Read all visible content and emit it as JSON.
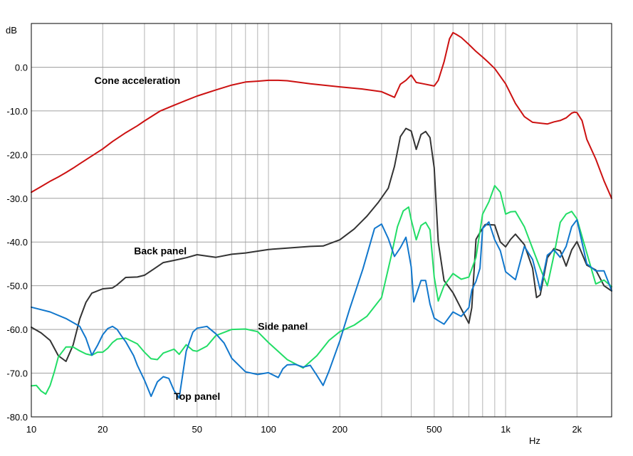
{
  "chart_data": {
    "type": "line",
    "title": "",
    "xlabel": "Hz",
    "ylabel": "dB",
    "x_scale": "log",
    "xlim": [
      10,
      2800
    ],
    "ylim": [
      -80,
      10
    ],
    "grid": true,
    "x_ticks": [
      {
        "value": 10,
        "label": "10"
      },
      {
        "value": 20,
        "label": "20"
      },
      {
        "value": 50,
        "label": "50"
      },
      {
        "value": 100,
        "label": "100"
      },
      {
        "value": 200,
        "label": "200"
      },
      {
        "value": 500,
        "label": "500"
      },
      {
        "value": 1000,
        "label": "1k"
      },
      {
        "value": 2000,
        "label": "2k"
      }
    ],
    "y_ticks": [
      {
        "value": 0,
        "label": "0.0"
      },
      {
        "value": -10,
        "label": "-10.0"
      },
      {
        "value": -20,
        "label": "-20.0"
      },
      {
        "value": -30,
        "label": "-30.0"
      },
      {
        "value": -40,
        "label": "-40.0"
      },
      {
        "value": -50,
        "label": "-50.0"
      },
      {
        "value": -60,
        "label": "-60.0"
      },
      {
        "value": -70,
        "label": "-70.0"
      },
      {
        "value": -80,
        "label": "-80.0"
      }
    ],
    "annotations": [
      {
        "text": "Cone acceleration",
        "x": 28,
        "y": -3.8
      },
      {
        "text": "Back panel",
        "x": 35,
        "y": -42.8
      },
      {
        "text": "Side panel",
        "x": 115,
        "y": -60.1
      },
      {
        "text": "Top panel",
        "x": 50,
        "y": -76.1
      }
    ],
    "series": [
      {
        "color": "#cc1111",
        "x": [
          10,
          11,
          12,
          13,
          14,
          15,
          16,
          18,
          20,
          22,
          25,
          28,
          30,
          35,
          40,
          45,
          50,
          60,
          70,
          80,
          90,
          100,
          110,
          120,
          150,
          200,
          250,
          300,
          340,
          360,
          380,
          400,
          420,
          450,
          500,
          520,
          550,
          580,
          600,
          620,
          650,
          700,
          750,
          800,
          850,
          900,
          1000,
          1100,
          1200,
          1300,
          1500,
          1600,
          1700,
          1800,
          1900,
          1950,
          2000,
          2100,
          2200,
          2400,
          2600,
          2800
        ],
        "values": [
          -28.6,
          -27.3,
          -26.1,
          -25.1,
          -24.1,
          -23.1,
          -22.1,
          -20.3,
          -18.7,
          -17.0,
          -15.0,
          -13.4,
          -12.3,
          -10.0,
          -8.7,
          -7.6,
          -6.6,
          -5.2,
          -4.1,
          -3.4,
          -3.2,
          -3.0,
          -3.0,
          -3.1,
          -3.8,
          -4.5,
          -5.0,
          -5.6,
          -6.9,
          -3.9,
          -3.0,
          -1.8,
          -3.5,
          -3.8,
          -4.3,
          -3.0,
          1.2,
          6.5,
          7.9,
          7.5,
          6.8,
          5.2,
          3.6,
          2.3,
          1.0,
          -0.3,
          -3.8,
          -8.3,
          -11.3,
          -12.6,
          -13.0,
          -12.5,
          -12.2,
          -11.6,
          -10.5,
          -10.3,
          -10.4,
          -12.2,
          -16.5,
          -21.0,
          -26.0,
          -30.0
        ]
      },
      {
        "color": "#333333",
        "x": [
          10,
          11,
          12,
          13,
          14,
          15,
          16,
          17,
          18,
          20,
          22,
          23,
          25,
          28,
          30,
          33,
          36,
          40,
          45,
          50,
          60,
          70,
          80,
          100,
          120,
          150,
          170,
          200,
          230,
          260,
          290,
          320,
          340,
          360,
          380,
          400,
          420,
          440,
          460,
          480,
          500,
          520,
          550,
          600,
          650,
          700,
          720,
          750,
          780,
          820,
          900,
          950,
          1000,
          1050,
          1100,
          1200,
          1300,
          1350,
          1400,
          1500,
          1600,
          1700,
          1800,
          1900,
          2000,
          2200,
          2400,
          2600,
          2800
        ],
        "values": [
          -59.5,
          -60.8,
          -62.5,
          -66.0,
          -67.3,
          -63.6,
          -57.6,
          -53.8,
          -51.7,
          -50.7,
          -50.5,
          -49.8,
          -48.1,
          -48.0,
          -47.6,
          -46.1,
          -44.7,
          -44.2,
          -43.6,
          -42.9,
          -43.5,
          -42.8,
          -42.5,
          -41.7,
          -41.4,
          -41.0,
          -40.9,
          -39.5,
          -37.0,
          -34.1,
          -31.0,
          -27.7,
          -22.7,
          -15.9,
          -14.0,
          -14.6,
          -18.8,
          -15.4,
          -14.7,
          -16.1,
          -23.0,
          -40.0,
          -48.8,
          -51.6,
          -55.3,
          -58.6,
          -55.0,
          -39.4,
          -37.8,
          -36.0,
          -36.1,
          -40.0,
          -41.1,
          -39.4,
          -38.2,
          -40.6,
          -46.0,
          -52.7,
          -52.1,
          -43.6,
          -41.5,
          -42.0,
          -45.5,
          -41.8,
          -39.9,
          -45.3,
          -46.4,
          -50.0,
          -51.2
        ]
      },
      {
        "color": "#22dd66",
        "x": [
          10,
          10.5,
          11,
          11.5,
          12,
          12.5,
          13,
          14,
          15,
          16,
          17,
          18,
          19,
          20,
          21,
          22,
          23,
          25,
          28,
          30,
          32,
          34,
          36,
          40,
          42,
          45,
          48,
          50,
          55,
          60,
          70,
          80,
          90,
          100,
          120,
          140,
          160,
          180,
          200,
          230,
          260,
          300,
          330,
          350,
          370,
          390,
          400,
          420,
          440,
          460,
          480,
          500,
          520,
          550,
          600,
          650,
          700,
          750,
          800,
          850,
          900,
          950,
          1000,
          1050,
          1100,
          1200,
          1300,
          1400,
          1500,
          1600,
          1700,
          1800,
          1900,
          2000,
          2200,
          2400,
          2600,
          2800
        ],
        "values": [
          -72.9,
          -72.8,
          -74.1,
          -74.8,
          -72.8,
          -69.7,
          -66.3,
          -64.0,
          -64.0,
          -64.9,
          -65.6,
          -65.9,
          -65.2,
          -65.2,
          -64.3,
          -63.0,
          -62.2,
          -62.0,
          -63.3,
          -65.2,
          -66.7,
          -66.9,
          -65.4,
          -64.5,
          -65.7,
          -63.5,
          -64.8,
          -65.0,
          -63.8,
          -61.4,
          -60.0,
          -59.9,
          -60.5,
          -63.0,
          -66.9,
          -68.8,
          -66.0,
          -62.5,
          -60.5,
          -59.0,
          -57.0,
          -52.7,
          -43.0,
          -36.5,
          -32.9,
          -32.0,
          -34.9,
          -39.5,
          -36.2,
          -35.5,
          -37.2,
          -48.0,
          -53.5,
          -50.0,
          -47.2,
          -48.5,
          -48.0,
          -43.5,
          -33.6,
          -30.8,
          -27.1,
          -28.6,
          -33.6,
          -33.1,
          -33.0,
          -36.5,
          -41.5,
          -46.0,
          -50.0,
          -42.9,
          -35.5,
          -33.6,
          -33.0,
          -34.7,
          -42.5,
          -49.6,
          -48.7,
          -50.2
        ]
      },
      {
        "color": "#1177cc",
        "x": [
          10,
          12,
          14,
          16,
          17,
          18,
          19,
          20,
          21,
          22,
          23,
          24,
          25,
          27,
          28,
          30,
          32,
          34,
          36,
          38,
          40,
          42,
          45,
          48,
          50,
          55,
          60,
          65,
          70,
          80,
          90,
          100,
          110,
          115,
          120,
          130,
          140,
          150,
          160,
          170,
          180,
          200,
          220,
          250,
          280,
          300,
          320,
          340,
          360,
          380,
          400,
          410,
          420,
          440,
          460,
          480,
          500,
          520,
          550,
          600,
          650,
          700,
          720,
          750,
          780,
          800,
          850,
          900,
          950,
          1000,
          1100,
          1200,
          1300,
          1350,
          1400,
          1500,
          1600,
          1700,
          1800,
          1900,
          2000,
          2200,
          2400,
          2600,
          2800
        ],
        "values": [
          -54.9,
          -56.0,
          -57.5,
          -59.3,
          -62.0,
          -65.9,
          -63.7,
          -61.2,
          -59.8,
          -59.3,
          -60.0,
          -61.5,
          -62.8,
          -66.0,
          -68.2,
          -71.6,
          -75.3,
          -72.0,
          -70.8,
          -71.2,
          -74.0,
          -75.7,
          -65.0,
          -60.6,
          -59.7,
          -59.3,
          -61.0,
          -63.1,
          -66.6,
          -69.7,
          -70.3,
          -69.9,
          -71.0,
          -69.0,
          -68.1,
          -68.0,
          -68.6,
          -68.2,
          -70.5,
          -72.8,
          -69.5,
          -62.6,
          -55.3,
          -46.2,
          -36.9,
          -35.9,
          -39.2,
          -43.3,
          -41.3,
          -38.9,
          -45.7,
          -53.7,
          -52.0,
          -48.8,
          -48.8,
          -54.2,
          -57.4,
          -58.0,
          -58.8,
          -56.0,
          -57.0,
          -55.0,
          -51.0,
          -49.0,
          -46.0,
          -36.9,
          -35.4,
          -39.5,
          -42.0,
          -46.8,
          -48.6,
          -41.0,
          -44.0,
          -47.5,
          -51.0,
          -43.0,
          -41.8,
          -43.5,
          -41.0,
          -36.5,
          -34.9,
          -45.0,
          -46.6,
          -46.6,
          -51.1
        ]
      }
    ]
  }
}
